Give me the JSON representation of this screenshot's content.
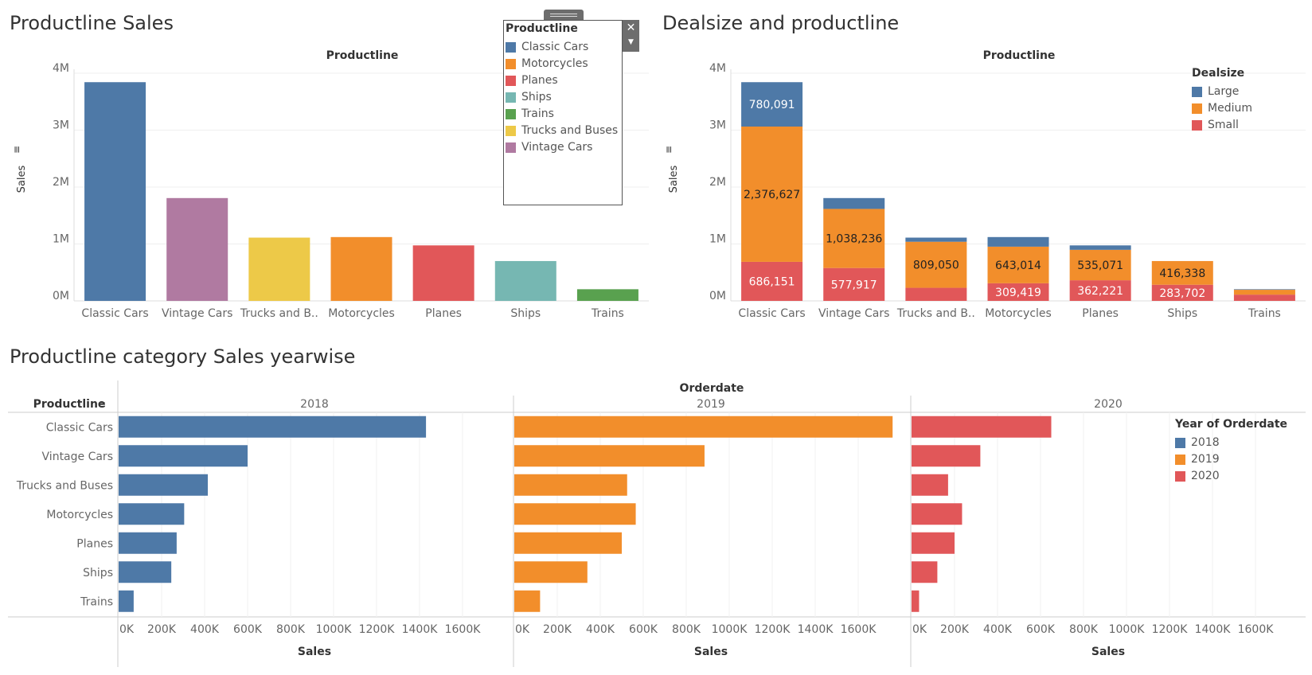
{
  "colors": {
    "Classic Cars": "#4e79a7",
    "Motorcycles": "#f28e2b",
    "Planes": "#e15759",
    "Ships": "#76b7b2",
    "Trains": "#59a14f",
    "Trucks and Buses": "#edc948",
    "Vintage Cars": "#b07aa1",
    "Large": "#4e79a7",
    "Medium": "#f28e2b",
    "Small": "#e15759",
    "2018": "#4e79a7",
    "2019": "#f28e2b",
    "2020": "#e15759"
  },
  "titles": {
    "chart1": "Productline Sales",
    "chart2": "Dealsize and productline",
    "chart3": "Productline category Sales yearwise"
  },
  "legend_productline": {
    "title": "Productline",
    "items": [
      "Classic Cars",
      "Motorcycles",
      "Planes",
      "Ships",
      "Trains",
      "Trucks and Buses",
      "Vintage Cars"
    ],
    "close_icon": "close-icon",
    "dropdown_icon": "chevron-down-icon"
  },
  "legend_dealsize": {
    "title": "Dealsize",
    "items": [
      "Large",
      "Medium",
      "Small"
    ]
  },
  "legend_year": {
    "title": "Year of Orderdate",
    "items": [
      "2018",
      "2019",
      "2020"
    ]
  },
  "chart_data": [
    {
      "type": "bar",
      "title": "Productline Sales",
      "header": "Productline",
      "ylabel": "Sales",
      "ylim": [
        0,
        4000000
      ],
      "yticks": [
        "0M",
        "1M",
        "2M",
        "3M",
        "4M"
      ],
      "categories": [
        "Classic Cars",
        "Vintage Cars",
        "Trucks and B..",
        "Motorcycles",
        "Planes",
        "Ships",
        "Trains"
      ],
      "category_colors": [
        "Classic Cars",
        "Vintage Cars",
        "Trucks and Buses",
        "Motorcycles",
        "Planes",
        "Ships",
        "Trains"
      ],
      "values": [
        3842869,
        1806675,
        1111559,
        1121426,
        975004,
        700040,
        204800
      ],
      "legend": "top-right"
    },
    {
      "type": "bar",
      "stacked": true,
      "title": "Dealsize and productline",
      "header": "Productline",
      "ylabel": "Sales",
      "ylim": [
        0,
        4000000
      ],
      "yticks": [
        "0M",
        "1M",
        "2M",
        "3M",
        "4M"
      ],
      "categories": [
        "Classic Cars",
        "Vintage Cars",
        "Trucks and B..",
        "Motorcycles",
        "Planes",
        "Ships",
        "Trains"
      ],
      "series": [
        {
          "name": "Small",
          "values": [
            686151,
            577917,
            230000,
            309419,
            362221,
            283702,
            110000
          ],
          "labels": [
            "686,151",
            "577,917",
            "",
            "309,419",
            "362,221",
            "283,702",
            ""
          ]
        },
        {
          "name": "Medium",
          "values": [
            2376627,
            1038236,
            809050,
            643014,
            535071,
            416338,
            85000
          ],
          "labels": [
            "2,376,627",
            "1,038,236",
            "809,050",
            "643,014",
            "535,071",
            "416,338",
            ""
          ]
        },
        {
          "name": "Large",
          "values": [
            780091,
            190522,
            72509,
            168993,
            77712,
            0,
            9800
          ],
          "labels": [
            "780,091",
            "",
            "",
            "",
            "",
            "",
            ""
          ]
        }
      ],
      "legend": "top-right"
    },
    {
      "type": "bar",
      "orientation": "horizontal",
      "title": "Productline category Sales yearwise",
      "header": "Orderdate",
      "row_header": "Productline",
      "categories": [
        "Classic Cars",
        "Vintage Cars",
        "Trucks and Buses",
        "Motorcycles",
        "Planes",
        "Ships",
        "Trains"
      ],
      "panels": [
        {
          "name": "2018",
          "values": [
            1430000,
            600000,
            415000,
            305000,
            270000,
            245000,
            70000
          ]
        },
        {
          "name": "2019",
          "values": [
            1760000,
            885000,
            525000,
            565000,
            500000,
            340000,
            120000
          ]
        },
        {
          "name": "2020",
          "values": [
            650000,
            320000,
            170000,
            235000,
            200000,
            120000,
            35000
          ]
        }
      ],
      "xlabel": "Sales",
      "xlim": [
        0,
        1800000
      ],
      "xticks": [
        "0K",
        "200K",
        "400K",
        "600K",
        "800K",
        "1000K",
        "1200K",
        "1400K",
        "1600K"
      ],
      "legend": "right"
    }
  ]
}
